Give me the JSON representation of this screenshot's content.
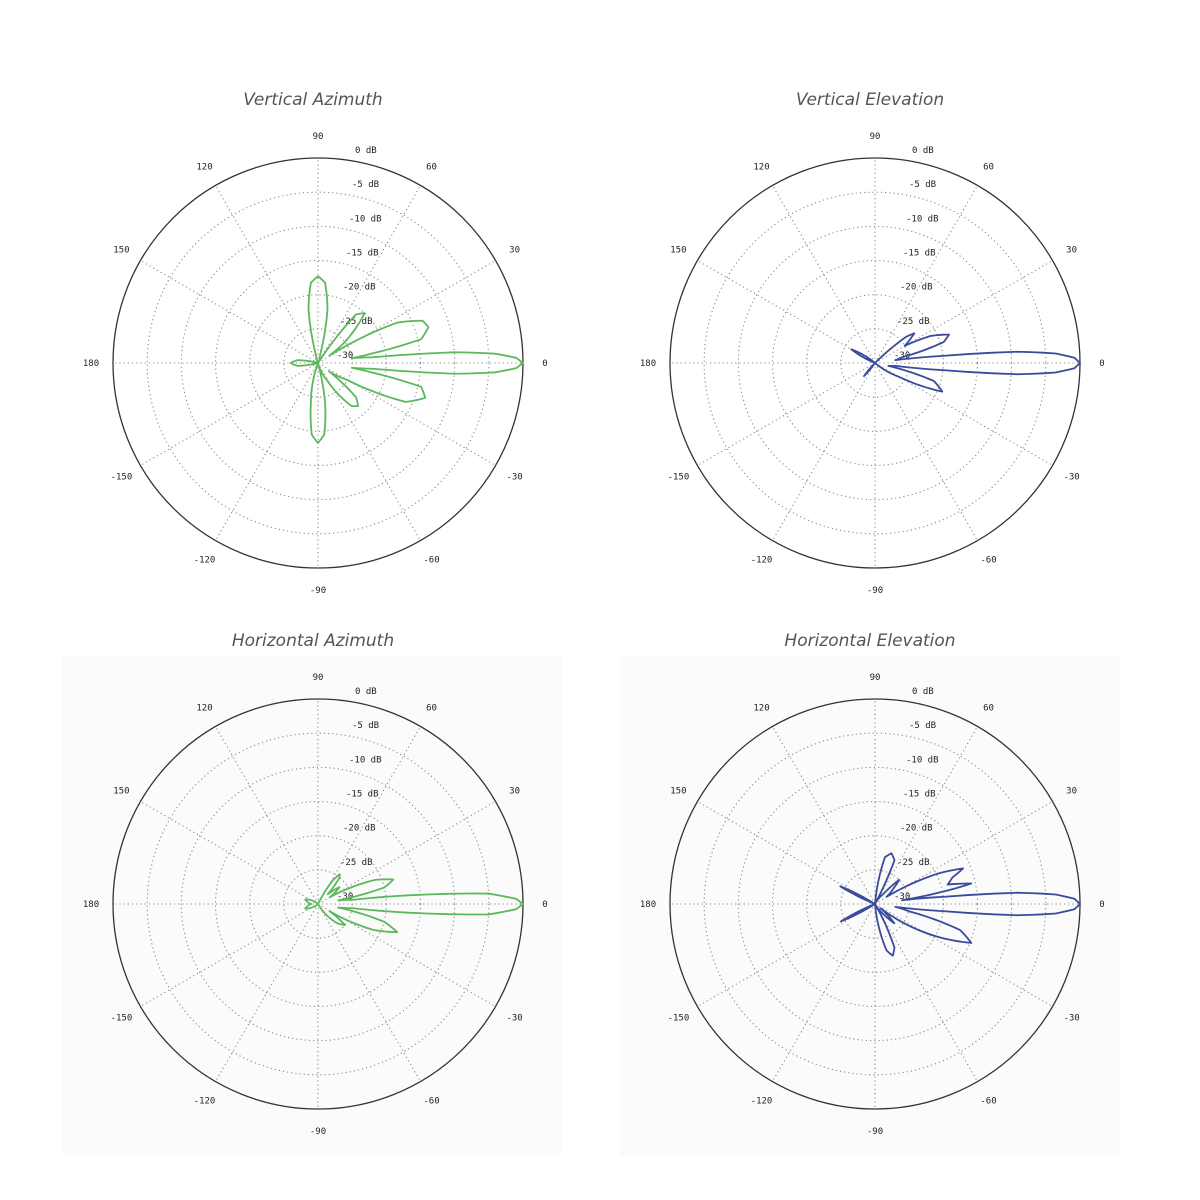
{
  "chart_data": [
    {
      "type": "polar",
      "title": "Vertical Azimuth",
      "color": "#5cb85c",
      "angle_ticks": [
        "0",
        "30",
        "60",
        "90",
        "120",
        "150",
        "180",
        "-150",
        "-120",
        "-90",
        "-60",
        "-30"
      ],
      "radial_ticks": [
        "0 dB",
        "-5 dB",
        "-10 dB",
        "-15 dB",
        "-20 dB",
        "-25 dB",
        "-30"
      ],
      "rlim": [
        -30,
        0
      ],
      "grid": true,
      "points": [
        [
          -180,
          -26
        ],
        [
          -172,
          -27
        ],
        [
          -165,
          -30
        ],
        [
          -110,
          -30
        ],
        [
          -100,
          -24
        ],
        [
          -95,
          -19.5
        ],
        [
          -90,
          -18.3
        ],
        [
          -85,
          -19.5
        ],
        [
          -80,
          -24
        ],
        [
          -75,
          -30
        ],
        [
          -62,
          -27
        ],
        [
          -52,
          -22
        ],
        [
          -47,
          -21.4
        ],
        [
          -42,
          -22.5
        ],
        [
          -37,
          -28
        ],
        [
          -30,
          -25
        ],
        [
          -24,
          -16
        ],
        [
          -18,
          -13.5
        ],
        [
          -13,
          -14.5
        ],
        [
          -10,
          -22
        ],
        [
          -8,
          -25
        ],
        [
          -6,
          -22
        ],
        [
          -4.5,
          -10
        ],
        [
          -3,
          -4
        ],
        [
          -1.5,
          -1
        ],
        [
          0,
          0
        ],
        [
          1.5,
          -1
        ],
        [
          3,
          -4
        ],
        [
          4.5,
          -10
        ],
        [
          6,
          -22
        ],
        [
          8,
          -25
        ],
        [
          10,
          -22
        ],
        [
          13,
          -14.5
        ],
        [
          18,
          -13
        ],
        [
          22,
          -13.5
        ],
        [
          27,
          -17
        ],
        [
          33,
          -28
        ],
        [
          40,
          -24
        ],
        [
          47,
          -20
        ],
        [
          52,
          -21
        ],
        [
          57,
          -30
        ],
        [
          75,
          -29
        ],
        [
          80,
          -22
        ],
        [
          85,
          -18.2
        ],
        [
          90,
          -17.3
        ],
        [
          95,
          -18.2
        ],
        [
          100,
          -22
        ],
        [
          105,
          -29
        ],
        [
          115,
          -30
        ],
        [
          165,
          -30
        ],
        [
          172,
          -27
        ],
        [
          180,
          -26
        ]
      ]
    },
    {
      "type": "polar",
      "title": "Vertical Elevation",
      "color": "#3a4a9c",
      "angle_ticks": [
        "0",
        "30",
        "60",
        "90",
        "120",
        "150",
        "180",
        "-150",
        "-120",
        "-90",
        "-60",
        "-30"
      ],
      "radial_ticks": [
        "0 dB",
        "-5 dB",
        "-10 dB",
        "-15 dB",
        "-20 dB",
        "-25 dB",
        "-30"
      ],
      "rlim": [
        -30,
        0
      ],
      "grid": true,
      "points": [
        [
          -180,
          -30
        ],
        [
          -135,
          -30
        ],
        [
          -130,
          -27.5
        ],
        [
          -125,
          -30
        ],
        [
          -40,
          -30
        ],
        [
          -30,
          -26
        ],
        [
          -23,
          -19.3
        ],
        [
          -17,
          -21
        ],
        [
          -12,
          -28
        ],
        [
          -8,
          -27
        ],
        [
          -6,
          -20
        ],
        [
          -4.5,
          -9
        ],
        [
          -3,
          -3.5
        ],
        [
          -1.5,
          -0.8
        ],
        [
          0,
          0
        ],
        [
          1.5,
          -0.8
        ],
        [
          3,
          -3.5
        ],
        [
          4.5,
          -9
        ],
        [
          6,
          -20
        ],
        [
          8,
          -27
        ],
        [
          12,
          -26
        ],
        [
          17,
          -19.5
        ],
        [
          21,
          -18.4
        ],
        [
          26,
          -21
        ],
        [
          30,
          -25
        ],
        [
          35,
          -23.5
        ],
        [
          37,
          -22.8
        ],
        [
          40,
          -24
        ],
        [
          45,
          -30
        ],
        [
          140,
          -30
        ],
        [
          150,
          -26
        ],
        [
          158,
          -30
        ],
        [
          180,
          -30
        ]
      ]
    },
    {
      "type": "polar",
      "title": "Horizontal Azimuth",
      "color": "#5cb85c",
      "angle_ticks": [
        "0",
        "30",
        "60",
        "90",
        "120",
        "150",
        "180",
        "-150",
        "-120",
        "-90",
        "-60",
        "-30"
      ],
      "radial_ticks": [
        "0 dB",
        "-5 dB",
        "-10 dB",
        "-15 dB",
        "-20 dB",
        "-25 dB",
        "-30"
      ],
      "rlim": [
        -30,
        0
      ],
      "grid": true,
      "points": [
        [
          -180,
          -29
        ],
        [
          -160,
          -28
        ],
        [
          -140,
          -30
        ],
        [
          -60,
          -30
        ],
        [
          -45,
          -26
        ],
        [
          -38,
          -25
        ],
        [
          -32,
          -28
        ],
        [
          -25,
          -21
        ],
        [
          -19.5,
          -17.7
        ],
        [
          -15,
          -20
        ],
        [
          -10,
          -27
        ],
        [
          -7,
          -25
        ],
        [
          -5,
          -14
        ],
        [
          -3.5,
          -5
        ],
        [
          -1.5,
          -1
        ],
        [
          0,
          0
        ],
        [
          1.5,
          -1
        ],
        [
          3.5,
          -5
        ],
        [
          5,
          -14
        ],
        [
          7,
          -25
        ],
        [
          10,
          -27
        ],
        [
          14,
          -20
        ],
        [
          18,
          -18.4
        ],
        [
          23,
          -21
        ],
        [
          30,
          -28
        ],
        [
          38,
          -26
        ],
        [
          45,
          -28
        ],
        [
          51,
          -25
        ],
        [
          54,
          -24.6
        ],
        [
          58,
          -26
        ],
        [
          64,
          -30
        ],
        [
          140,
          -30
        ],
        [
          160,
          -28
        ],
        [
          180,
          -29
        ]
      ]
    },
    {
      "type": "polar",
      "title": "Horizontal Elevation",
      "color": "#3a4a9c",
      "angle_ticks": [
        "0",
        "30",
        "60",
        "90",
        "120",
        "150",
        "180",
        "-150",
        "-120",
        "-90",
        "-60",
        "-30"
      ],
      "radial_ticks": [
        "0 dB",
        "-5 dB",
        "-10 dB",
        "-15 dB",
        "-20 dB",
        "-25 dB",
        "-30"
      ],
      "rlim": [
        -30,
        0
      ],
      "grid": true,
      "points": [
        [
          -180,
          -30
        ],
        [
          -158,
          -30
        ],
        [
          -153,
          -24.4
        ],
        [
          -148,
          -30
        ],
        [
          -85,
          -30
        ],
        [
          -76,
          -23
        ],
        [
          -71,
          -22
        ],
        [
          -66,
          -23
        ],
        [
          -60,
          -30
        ],
        [
          -50,
          -28
        ],
        [
          -45,
          -26
        ],
        [
          -38,
          -29
        ],
        [
          -28,
          -20
        ],
        [
          -22,
          -14.8
        ],
        [
          -17,
          -17
        ],
        [
          -12,
          -25
        ],
        [
          -8,
          -27
        ],
        [
          -6,
          -20
        ],
        [
          -4.5,
          -9
        ],
        [
          -3,
          -3.5
        ],
        [
          -1.5,
          -0.8
        ],
        [
          0,
          0
        ],
        [
          1.5,
          -0.8
        ],
        [
          3,
          -3.5
        ],
        [
          4.5,
          -9
        ],
        [
          6,
          -20
        ],
        [
          8,
          -26
        ],
        [
          11,
          -18
        ],
        [
          12,
          -15.6
        ],
        [
          15,
          -19
        ],
        [
          19,
          -18
        ],
        [
          22,
          -16.1
        ],
        [
          26,
          -20
        ],
        [
          32,
          -28
        ],
        [
          40,
          -26.5
        ],
        [
          45,
          -25
        ],
        [
          50,
          -28
        ],
        [
          62,
          -30
        ],
        [
          66,
          -23
        ],
        [
          72,
          -22.2
        ],
        [
          78,
          -23
        ],
        [
          85,
          -30
        ],
        [
          148,
          -30
        ],
        [
          153,
          -24.3
        ],
        [
          158,
          -30
        ],
        [
          180,
          -30
        ]
      ]
    }
  ]
}
